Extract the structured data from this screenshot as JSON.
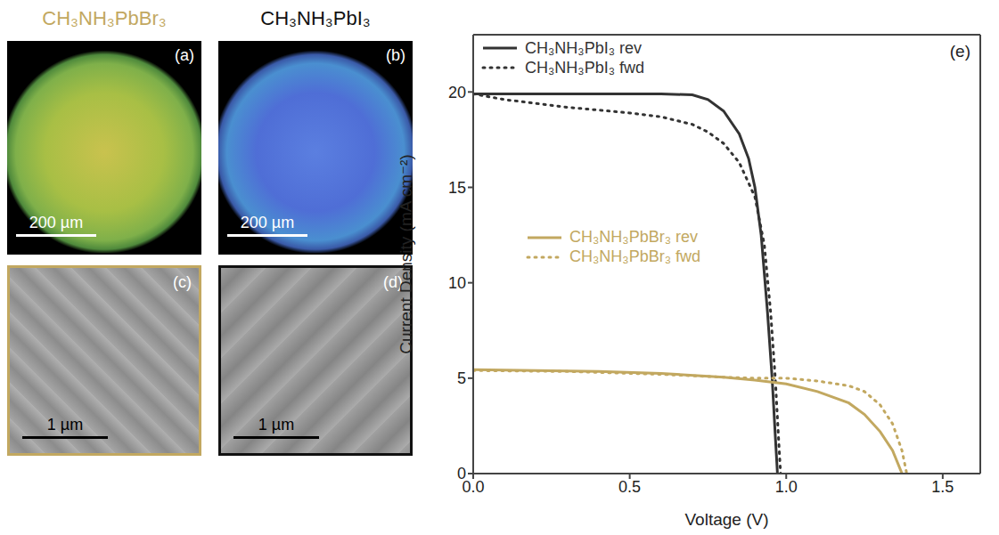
{
  "headers": [
    "CH₃NH₃PbBr₃",
    "CH₃NH₃PbI₃"
  ],
  "images": [
    {
      "label": "(a)",
      "scale_bar": "200 µm"
    },
    {
      "label": "(b)",
      "scale_bar": "200 µm"
    },
    {
      "label": "(c)",
      "scale_bar": "1 µm"
    },
    {
      "label": "(d)",
      "scale_bar": "1 µm"
    }
  ],
  "chart_data": {
    "type": "line",
    "panel_label": "(e)",
    "x_label": "Voltage (V)",
    "y_label": "Current Density (mA cm⁻²)",
    "xlim": [
      0,
      1.62
    ],
    "xticks": [
      {
        "value": 0,
        "label": "0.0"
      },
      0.5,
      {
        "value": 1,
        "label": "1.0"
      },
      1.5
    ],
    "ylim": [
      0,
      23
    ],
    "yticks": [
      0,
      5,
      10,
      15,
      20
    ],
    "grid": false,
    "legend": "upper left",
    "series": [
      {
        "name": "CH₃NH₃PbI₃ rev",
        "color": "#333333",
        "line_style": "solid",
        "x": [
          0,
          0.2,
          0.4,
          0.6,
          0.7,
          0.75,
          0.8,
          0.85,
          0.88,
          0.9,
          0.92,
          0.94,
          0.955,
          0.965,
          0.972
        ],
        "values": [
          19.9,
          19.9,
          19.9,
          19.9,
          19.85,
          19.6,
          19,
          17.8,
          16.5,
          15,
          12.5,
          8.5,
          5,
          2,
          0
        ]
      },
      {
        "name": "CH₃NH₃PbI₃ fwd",
        "color": "#333333",
        "line_style": "dotted",
        "x": [
          0,
          0.1,
          0.3,
          0.5,
          0.6,
          0.7,
          0.75,
          0.8,
          0.85,
          0.9,
          0.93,
          0.95,
          0.965,
          0.975,
          0.982
        ],
        "values": [
          19.9,
          19.6,
          19.2,
          18.9,
          18.7,
          18.3,
          17.9,
          17.3,
          16.3,
          14.5,
          12,
          8.5,
          5,
          2,
          0
        ]
      },
      {
        "name": "CH₃NH₃PbBr₃ rev",
        "color": "#c2a860",
        "line_style": "solid",
        "x": [
          0,
          0.2,
          0.4,
          0.6,
          0.8,
          0.9,
          1.0,
          1.1,
          1.2,
          1.25,
          1.3,
          1.34,
          1.37
        ],
        "values": [
          5.45,
          5.4,
          5.35,
          5.25,
          5.05,
          4.9,
          4.7,
          4.3,
          3.7,
          3.1,
          2.2,
          1.2,
          0
        ]
      },
      {
        "name": "CH₃NH₃PbBr₃ fwd",
        "color": "#c2a860",
        "line_style": "dotted",
        "x": [
          0,
          0.3,
          0.6,
          0.8,
          0.9,
          1.0,
          1.1,
          1.2,
          1.25,
          1.3,
          1.34,
          1.37,
          1.385
        ],
        "values": [
          5.4,
          5.35,
          5.2,
          5.05,
          5.0,
          5.0,
          4.85,
          4.6,
          4.3,
          3.6,
          2.6,
          1.2,
          0
        ]
      }
    ]
  }
}
